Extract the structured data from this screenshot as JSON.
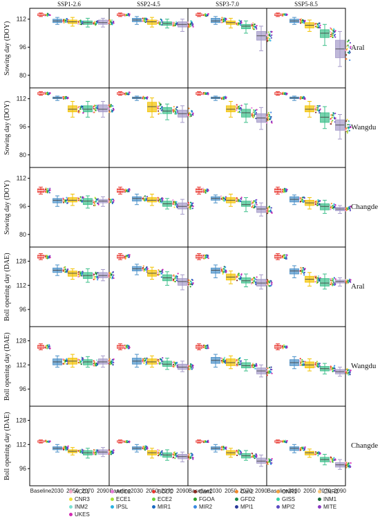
{
  "chart_data": {
    "type": "box",
    "scenarios": [
      "SSP1-2.6",
      "SSP2-4.5",
      "SSP3-7.0",
      "SSP5-8.5"
    ],
    "periods": [
      "Baseline",
      "2030",
      "2050",
      "2070",
      "2090"
    ],
    "period_colors": [
      "#e8322a",
      "#4a90c8",
      "#f2c200",
      "#3cbf8a",
      "#a49ac9"
    ],
    "rows": [
      {
        "site": "Aral",
        "ylabel": "Sowing day (DOY)",
        "ylim": [
          74,
          117
        ],
        "yticks": [
          "80",
          "96",
          "112"
        ],
        "yticks_values": [
          80,
          96,
          112
        ],
        "scenarios": [
          [
            [
              113.5,
              114,
              114.5,
              115,
              115.5
            ],
            [
              109,
              110,
              111,
              112,
              113
            ],
            [
              108,
              109.5,
              110.5,
              111.5,
              113
            ],
            [
              107.5,
              109,
              110,
              111,
              112.5
            ],
            [
              107.5,
              109,
              110,
              111.5,
              112.5
            ]
          ],
          [
            [
              113.5,
              114,
              114.5,
              115,
              115.5
            ],
            [
              109,
              110.5,
              111.5,
              112.5,
              113.5
            ],
            [
              107.5,
              109,
              110.5,
              111.5,
              113
            ],
            [
              107,
              108.5,
              109.5,
              110.5,
              112
            ],
            [
              105,
              107.5,
              109,
              110.5,
              112
            ]
          ],
          [
            [
              113.5,
              114,
              114.5,
              115,
              115.5
            ],
            [
              109,
              110,
              111,
              112.5,
              113.5
            ],
            [
              107,
              109,
              110,
              111,
              112.5
            ],
            [
              104,
              106.5,
              108,
              109,
              111
            ],
            [
              94,
              100,
              102.5,
              105,
              108
            ]
          ],
          [
            [
              113.5,
              114,
              114.5,
              115,
              115.5
            ],
            [
              109,
              110,
              111,
              112,
              113
            ],
            [
              105,
              107,
              108.5,
              110,
              111.5
            ],
            [
              97,
              101.5,
              104,
              106,
              109
            ],
            [
              85,
              90,
              95,
              100,
              105
            ]
          ]
        ]
      },
      {
        "site": "Wangdu",
        "ylabel": "Sowing day (DOY)",
        "ylim": [
          74,
          117
        ],
        "yticks": [
          "80",
          "96",
          "112"
        ],
        "yticks_values": [
          80,
          96,
          112
        ],
        "scenarios": [
          [
            [
              114,
              114.5,
              115,
              115.5,
              116
            ],
            [
              111,
              112,
              112.5,
              113,
              113.5
            ],
            [
              101.5,
              104.5,
              106,
              108,
              110.5
            ],
            [
              101.5,
              104.5,
              106,
              108,
              110.5
            ],
            [
              101.5,
              104.5,
              106,
              108.5,
              110.5
            ]
          ],
          [
            [
              114,
              114.5,
              115,
              115.5,
              116
            ],
            [
              111,
              112,
              112.5,
              113,
              113.5
            ],
            [
              101.5,
              104.5,
              107.5,
              110,
              112.5
            ],
            [
              100,
              103.5,
              105,
              107,
              109
            ],
            [
              98.5,
              101.5,
              103.5,
              105.5,
              108
            ]
          ],
          [
            [
              114,
              114.5,
              115,
              115.5,
              116
            ],
            [
              111,
              112,
              112.5,
              113,
              113.5
            ],
            [
              101.5,
              104.5,
              106,
              108,
              110.5
            ],
            [
              98.5,
              101.5,
              104,
              106,
              109
            ],
            [
              94.5,
              98.5,
              101,
              103.5,
              107
            ]
          ],
          [
            [
              114,
              114.5,
              115,
              115.5,
              116
            ],
            [
              111,
              112,
              112.5,
              113,
              113.5
            ],
            [
              101.5,
              104.5,
              106,
              108,
              110.5
            ],
            [
              95,
              98.5,
              101.5,
              104,
              107.5
            ],
            [
              89,
              94,
              97,
              100,
              103
            ]
          ]
        ]
      },
      {
        "site": "Changde",
        "ylabel": "Sowing day (DOY)",
        "ylim": [
          74,
          117
        ],
        "yticks": [
          "80",
          "96",
          "112"
        ],
        "yticks_values": [
          80,
          96,
          112
        ],
        "scenarios": [
          [
            [
              103,
              104,
              105,
              106,
              107
            ],
            [
              96,
              98,
              99.5,
              100.5,
              102
            ],
            [
              96.5,
              98.5,
              99.5,
              101,
              103
            ],
            [
              95,
              97,
              99,
              100.5,
              102
            ],
            [
              96,
              98,
              99,
              100,
              101.5
            ]
          ],
          [
            [
              103,
              104,
              105,
              106,
              107
            ],
            [
              97,
              99,
              100.5,
              101.5,
              103
            ],
            [
              96.5,
              98.5,
              99.5,
              101,
              103
            ],
            [
              94.5,
              96,
              97.5,
              99,
              100.5
            ],
            [
              91.5,
              94.5,
              96,
              98,
              100
            ]
          ],
          [
            [
              103,
              104,
              105,
              106,
              107
            ],
            [
              98,
              99.5,
              100.5,
              101.5,
              102.5
            ],
            [
              96,
              98,
              99.5,
              101,
              103
            ],
            [
              93,
              96,
              97,
              99,
              101
            ],
            [
              90.5,
              92.5,
              94.5,
              96,
              98
            ]
          ],
          [
            [
              103,
              104,
              105,
              106,
              107
            ],
            [
              97,
              98.5,
              100,
              101.5,
              102.5
            ],
            [
              94.5,
              96.5,
              98,
              99.5,
              101
            ],
            [
              92,
              94,
              96,
              97.5,
              99.5
            ],
            [
              92,
              93.5,
              94.5,
              95.5,
              96.5
            ]
          ]
        ]
      },
      {
        "site": "Aral",
        "ylabel": "Boll opening day (DAE)",
        "ylim": [
          86,
          136
        ],
        "yticks": [
          "96",
          "112",
          "128"
        ],
        "yticks_values": [
          96,
          112,
          128
        ],
        "scenarios": [
          [
            [
              129,
              130,
              131,
              132,
              133
            ],
            [
              118.5,
              120.5,
              122,
              123.5,
              125.5
            ],
            [
              116,
              118,
              120,
              121.5,
              123
            ],
            [
              114,
              116.5,
              118.5,
              120.5,
              123
            ],
            [
              115,
              117,
              118.5,
              120.5,
              122.5
            ]
          ],
          [
            [
              129,
              130,
              131,
              132,
              133
            ],
            [
              119,
              121.5,
              123,
              124.5,
              126
            ],
            [
              116,
              118,
              120,
              122,
              124
            ],
            [
              112,
              115,
              117,
              119,
              121
            ],
            [
              109,
              112,
              114.5,
              116.5,
              119
            ]
          ],
          [
            [
              129,
              130,
              131,
              132,
              133
            ],
            [
              117,
              120,
              122,
              123.5,
              125.5
            ],
            [
              113,
              115.5,
              117.5,
              119.5,
              121.5
            ],
            [
              111,
              113.5,
              115,
              117,
              119.5
            ],
            [
              109.5,
              111.5,
              113.5,
              116,
              119
            ]
          ],
          [
            [
              129,
              130,
              131,
              132,
              133
            ],
            [
              117,
              119.5,
              121.5,
              123,
              125
            ],
            [
              111.5,
              114,
              116,
              118,
              120.5
            ],
            [
              109.5,
              111.5,
              113.5,
              116.5,
              119.5
            ],
            [
              111.5,
              113.5,
              114.5,
              115.5,
              117
            ]
          ]
        ]
      },
      {
        "site": "Wangdu",
        "ylabel": "Boll opening day (DAE)",
        "ylim": [
          86,
          136
        ],
        "yticks": [
          "96",
          "112",
          "128"
        ],
        "yticks_values": [
          96,
          112,
          128
        ],
        "scenarios": [
          [
            [
              122,
              123,
              124,
              125,
              126
            ],
            [
              110.5,
              112,
              114,
              116,
              118
            ],
            [
              110.5,
              112.5,
              114.5,
              116.5,
              119
            ],
            [
              110.5,
              112,
              114,
              115.5,
              117.5
            ],
            [
              110.5,
              112.5,
              114,
              116,
              118
            ]
          ],
          [
            [
              122,
              123,
              124,
              125,
              126
            ],
            [
              110.5,
              112.5,
              114.5,
              116.5,
              119
            ],
            [
              110.5,
              112.5,
              114,
              116,
              118
            ],
            [
              109,
              111,
              112.5,
              114.5,
              116.5
            ],
            [
              107.5,
              109,
              110.5,
              112.5,
              114.5
            ]
          ],
          [
            [
              122,
              123,
              124,
              125,
              126
            ],
            [
              110.5,
              113,
              115,
              117,
              119
            ],
            [
              109.5,
              111.5,
              113.5,
              116,
              118
            ],
            [
              108,
              110,
              111.5,
              113.5,
              115.5
            ],
            [
              104,
              106,
              108,
              110,
              112
            ]
          ],
          [
            [
              122,
              123,
              124,
              125,
              126
            ],
            [
              109.5,
              111.5,
              113.5,
              115.5,
              117.5
            ],
            [
              108,
              110,
              112,
              114,
              116
            ],
            [
              106,
              108,
              109.5,
              111,
              113
            ],
            [
              104.5,
              106,
              107.5,
              109,
              110.5
            ]
          ]
        ]
      },
      {
        "site": "Changde",
        "ylabel": "Boll opening day (DAE)",
        "ylim": [
          86,
          136
        ],
        "yticks": [
          "96",
          "112",
          "128"
        ],
        "yticks_values": [
          96,
          112,
          128
        ],
        "scenarios": [
          [
            [
              113,
              113.5,
              114,
              114.5,
              115
            ],
            [
              107,
              108.5,
              109.5,
              110.5,
              112
            ],
            [
              105,
              106.5,
              107.5,
              108.5,
              110
            ],
            [
              103,
              105,
              106.5,
              108,
              109.5
            ],
            [
              104,
              105.5,
              107,
              108.5,
              110
            ]
          ],
          [
            [
              113,
              113.5,
              114,
              114.5,
              115
            ],
            [
              107,
              108.5,
              109.5,
              110.5,
              112
            ],
            [
              103,
              105,
              106.5,
              108,
              109.5
            ],
            [
              101.5,
              103.5,
              105,
              106.5,
              108.5
            ],
            [
              100.5,
              102.5,
              104,
              105.5,
              107
            ]
          ],
          [
            [
              113,
              113.5,
              114,
              114.5,
              115
            ],
            [
              107,
              108.5,
              109.5,
              110.5,
              112
            ],
            [
              103.5,
              105,
              106.5,
              108,
              109.5
            ],
            [
              101.5,
              103,
              104.5,
              106,
              108
            ],
            [
              97.5,
              99.5,
              101,
              103,
              105
            ]
          ],
          [
            [
              113,
              113.5,
              114,
              114.5,
              115
            ],
            [
              106.5,
              108,
              109.5,
              110.5,
              112
            ],
            [
              103.5,
              105,
              106.5,
              107.5,
              109
            ],
            [
              98.5,
              100.5,
              102,
              103.5,
              105.5
            ],
            [
              95.5,
              97,
              98.5,
              100,
              102
            ]
          ]
        ]
      }
    ],
    "legend": [
      {
        "name": "ACC1",
        "color": "#f4a6c6"
      },
      {
        "name": "ACC2",
        "color": "#e878d8"
      },
      {
        "name": "BCCC",
        "color": "#e8322a"
      },
      {
        "name": "Can1",
        "color": "#8b2c22"
      },
      {
        "name": "Can2",
        "color": "#f08a2a"
      },
      {
        "name": "CNR1",
        "color": "#f4a23a"
      },
      {
        "name": "CNR2",
        "color": "#f7c67a"
      },
      {
        "name": "CNR3",
        "color": "#f4e23a"
      },
      {
        "name": "ECE1",
        "color": "#a8e23a"
      },
      {
        "name": "ECE2",
        "color": "#6ad23a"
      },
      {
        "name": "FGOA",
        "color": "#2aa02a"
      },
      {
        "name": "GFD2",
        "color": "#1a8a4a"
      },
      {
        "name": "GISS",
        "color": "#3ad2a2"
      },
      {
        "name": "INM1",
        "color": "#1a6a3a"
      },
      {
        "name": "INM2",
        "color": "#7ae2d2"
      },
      {
        "name": "IPSL",
        "color": "#2ab2e2"
      },
      {
        "name": "MIR1",
        "color": "#1a6ac2"
      },
      {
        "name": "MIR2",
        "color": "#3a8ae2"
      },
      {
        "name": "MPI1",
        "color": "#2a3a9a"
      },
      {
        "name": "MPI2",
        "color": "#5a4ac2"
      },
      {
        "name": "MITE",
        "color": "#8a3ac2"
      },
      {
        "name": "UKES",
        "color": "#d22ab2"
      }
    ]
  }
}
